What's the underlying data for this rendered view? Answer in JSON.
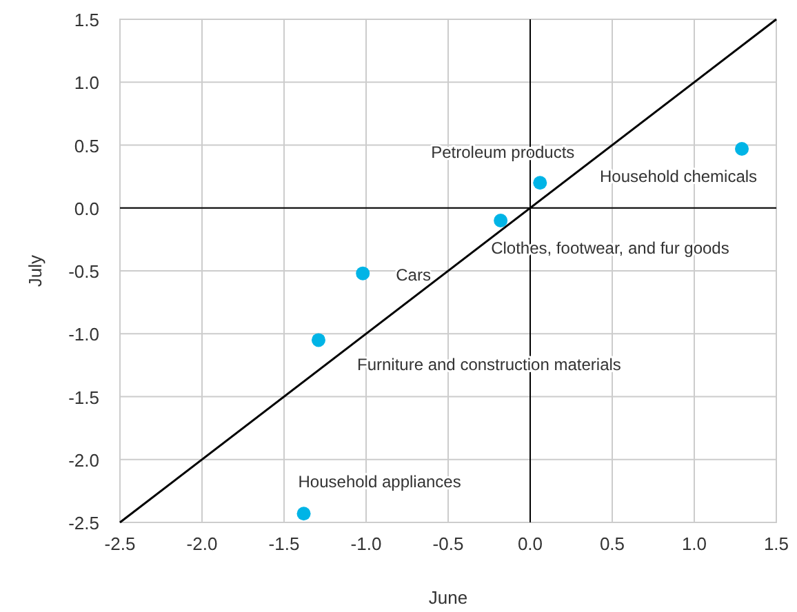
{
  "chart_data": {
    "type": "scatter",
    "xlabel": "June",
    "ylabel": "July",
    "xlim": [
      -2.5,
      1.5
    ],
    "ylim": [
      -2.5,
      1.5
    ],
    "xticks": [
      -2.5,
      {
        "value": -2,
        "label": "-2.0"
      },
      -1.5,
      {
        "value": -1,
        "label": "-1.0"
      },
      -0.5,
      {
        "value": 0,
        "label": "0.0"
      },
      0.5,
      {
        "value": 1,
        "label": "1.0"
      },
      1.5
    ],
    "yticks": [
      -2.5,
      {
        "value": -2,
        "label": "-2.0"
      },
      -1.5,
      {
        "value": -1,
        "label": "-1.0"
      },
      -0.5,
      {
        "value": 0,
        "label": "0.0"
      },
      0.5,
      {
        "value": 1,
        "label": "1.0"
      },
      1.5
    ],
    "grid": true,
    "marker": "circle",
    "series": [
      {
        "type": "scatter",
        "color": "#00b4e6",
        "x": [
          -1.38,
          -1.29,
          -1.02,
          -0.18,
          0.06,
          1.29
        ],
        "values": [
          -2.43,
          -1.05,
          -0.52,
          -0.1,
          0.2,
          0.47
        ]
      },
      {
        "type": "line",
        "color": "#000000",
        "marker": "none",
        "x": [
          -2.5,
          1.5
        ],
        "values": [
          -2.5,
          1.5
        ]
      }
    ],
    "annotations": [
      {
        "text": "Household appliances",
        "x": -1.38,
        "y": -2.43
      },
      {
        "text": "Furniture and construction materials",
        "x": -1.29,
        "y": -1.05
      },
      {
        "text": "Cars",
        "x": -1.02,
        "y": -0.52
      },
      {
        "text": "Clothes, footwear, and fur goods",
        "x": -0.18,
        "y": -0.1
      },
      {
        "text": "Petroleum products",
        "x": 0.06,
        "y": 0.2
      },
      {
        "text": "Household chemicals",
        "x": 1.29,
        "y": 0.47
      }
    ]
  }
}
